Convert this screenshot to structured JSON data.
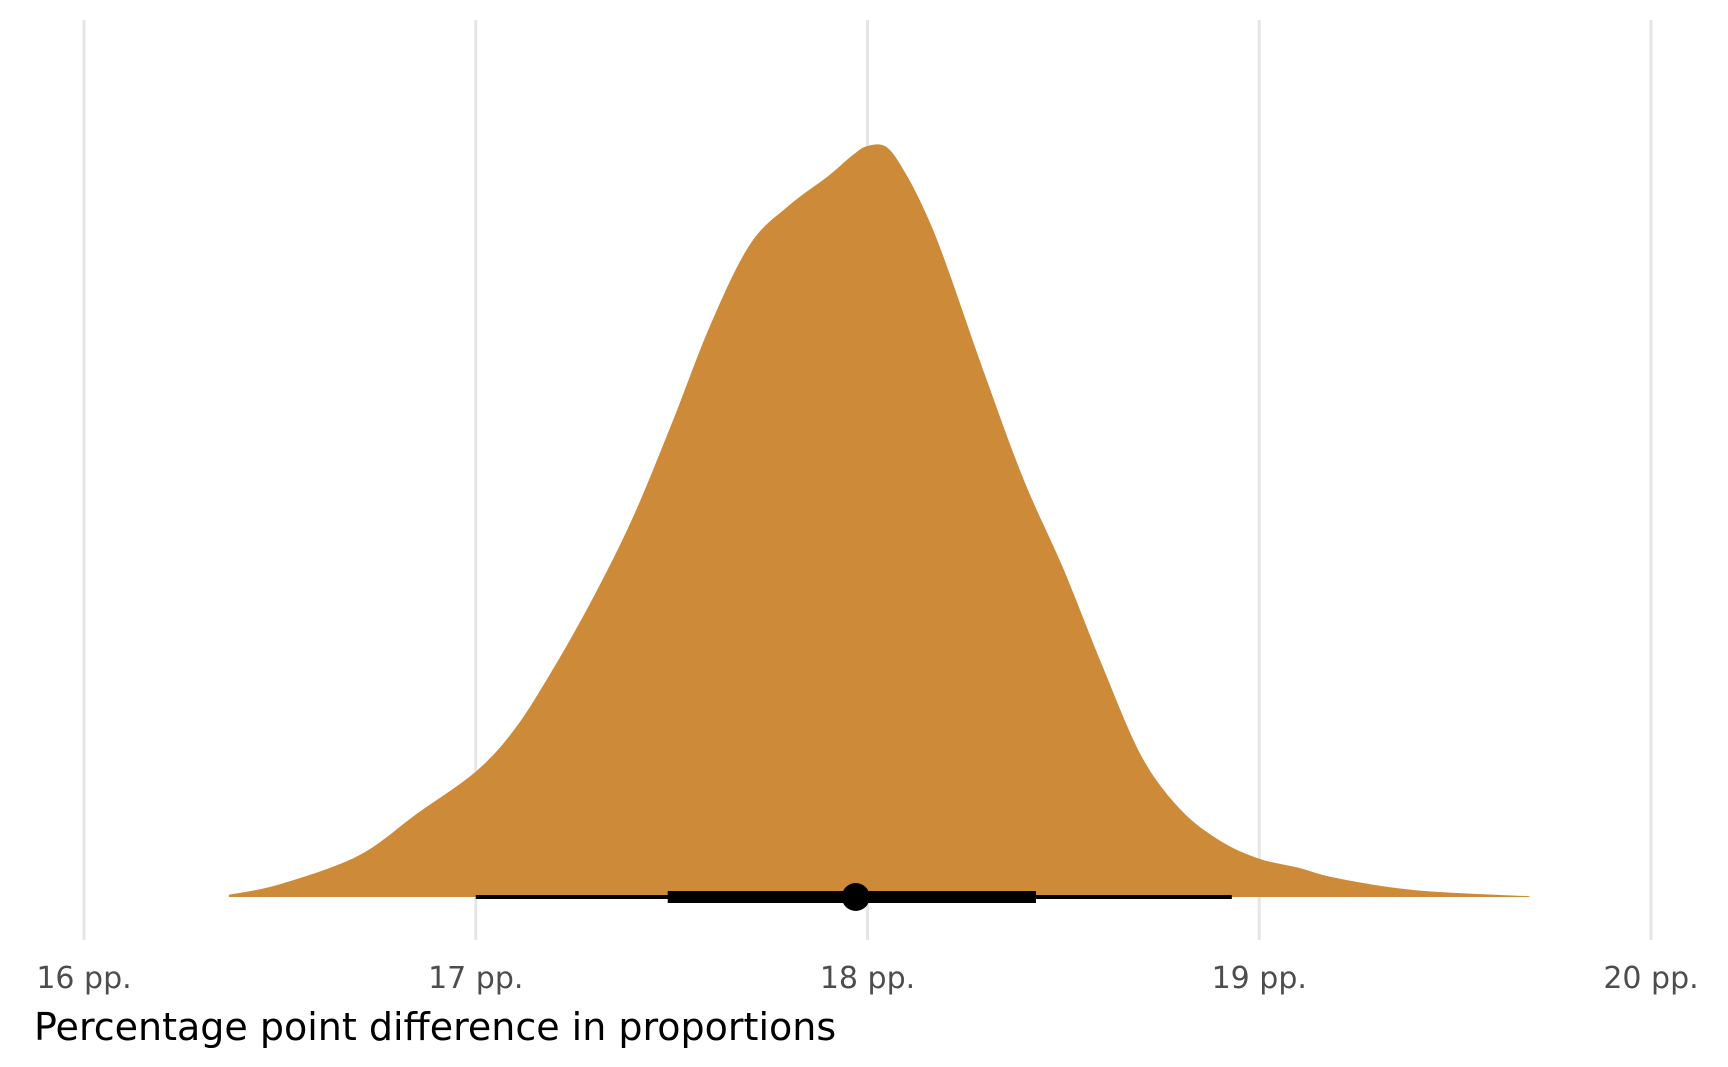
{
  "chart_data": {
    "type": "area",
    "subtype": "density-with-interval",
    "title": "",
    "xlabel": "Percentage point difference in proportions",
    "ylabel": "",
    "xlim": [
      16.0,
      20.0
    ],
    "x_ticks": [
      16,
      17,
      18,
      19,
      20
    ],
    "x_tick_labels": [
      "16 pp.",
      "17 pp.",
      "18 pp.",
      "19 pp.",
      "20 pp."
    ],
    "grid": {
      "vertical_major": true,
      "horizontal": false
    },
    "colors": {
      "density_fill": "#cd8a39",
      "interval": "#000000",
      "grid": "#e6e6e6",
      "tick_text": "#4d4d4d",
      "axis_title": "#000000"
    },
    "density": {
      "x": [
        16.37,
        16.5,
        16.7,
        16.85,
        17.0,
        17.1,
        17.2,
        17.3,
        17.4,
        17.5,
        17.6,
        17.7,
        17.8,
        17.9,
        17.96,
        18.0,
        18.05,
        18.1,
        18.15,
        18.2,
        18.3,
        18.4,
        18.5,
        18.6,
        18.7,
        18.8,
        18.9,
        19.0,
        19.1,
        19.2,
        19.4,
        19.69
      ],
      "y": [
        0.003,
        0.017,
        0.055,
        0.111,
        0.167,
        0.224,
        0.306,
        0.399,
        0.504,
        0.63,
        0.763,
        0.869,
        0.921,
        0.96,
        0.987,
        1.0,
        0.998,
        0.961,
        0.909,
        0.844,
        0.695,
        0.554,
        0.437,
        0.307,
        0.187,
        0.116,
        0.075,
        0.051,
        0.039,
        0.025,
        0.009,
        0.001
      ]
    },
    "interval": {
      "point_estimate": 17.97,
      "inner_interval": [
        17.49,
        18.43
      ],
      "outer_interval": [
        17.0,
        18.93
      ]
    }
  }
}
